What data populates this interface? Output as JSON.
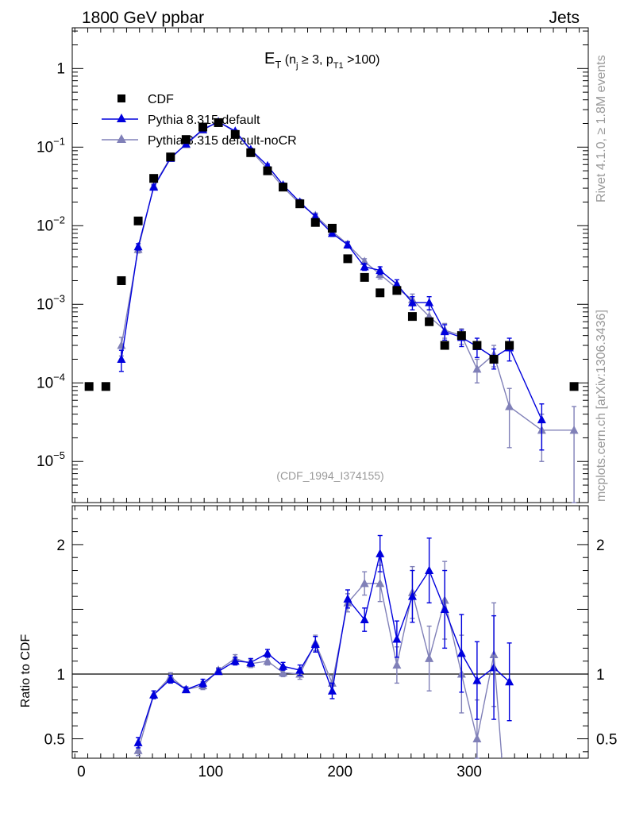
{
  "header": {
    "left": "1800 GeV ppbar",
    "right": "Jets"
  },
  "side_labels": {
    "top": "Rivet 4.1.0, ≥ 1.8M events",
    "bottom": "mcplots.cern.ch [arXiv:1306.3436]"
  },
  "plot_title": {
    "main": "E",
    "main_sub": "T",
    "paren_open": " (n",
    "n_sub": "j",
    "cond_mid": " ≥ 3, p",
    "p_sub": "T1",
    "cond_end": " >100)"
  },
  "watermark": "(CDF_1994_I374155)",
  "legend": [
    {
      "label": "CDF",
      "marker": "square",
      "color": "#000000"
    },
    {
      "label": "Pythia 8.315 default",
      "marker": "triangle",
      "color": "#0000dd"
    },
    {
      "label": "Pythia 8.315 default-noCR",
      "marker": "triangle",
      "color": "#8080b8"
    }
  ],
  "ratio_ylabel": "Ratio to CDF",
  "chart_data": {
    "type": "line",
    "xlim": [
      -7,
      392
    ],
    "main": {
      "yscale": "log",
      "ylim": [
        3e-06,
        3.3
      ],
      "ytick_values": [
        1e-05,
        0.0001,
        0.001,
        0.01,
        0.1,
        1
      ],
      "ytick_labels": [
        {
          "base": "10",
          "exp": "−5"
        },
        {
          "base": "10",
          "exp": "−4"
        },
        {
          "base": "10",
          "exp": "−3"
        },
        {
          "base": "10",
          "exp": "−2"
        },
        {
          "base": "10",
          "exp": "−1"
        },
        {
          "base": "1",
          "exp": ""
        }
      ]
    },
    "ratio": {
      "ylim": [
        0.35,
        2.3
      ],
      "ytick_values": [
        0.5,
        1,
        2
      ],
      "ytick_labels": [
        "0.5",
        "1",
        "2"
      ],
      "reference_line": 1
    },
    "x_ticks": [
      0,
      100,
      200,
      300
    ],
    "x_tick_labels": [
      "0",
      "100",
      "200",
      "300"
    ],
    "data": {
      "name": "CDF",
      "x": [
        6,
        19,
        31,
        44,
        56,
        69,
        81,
        94,
        106,
        119,
        131,
        144,
        156,
        169,
        181,
        194,
        206,
        219,
        231,
        244,
        256,
        269,
        281,
        294,
        306,
        319,
        331,
        381
      ],
      "y": [
        9e-05,
        9e-05,
        0.002,
        0.0115,
        0.04,
        0.075,
        0.125,
        0.18,
        0.205,
        0.145,
        0.085,
        0.05,
        0.031,
        0.019,
        0.011,
        0.0093,
        0.0038,
        0.0022,
        0.0014,
        0.0015,
        0.0007,
        0.0006,
        0.0003,
        0.0004,
        0.0003,
        0.0002,
        0.0003,
        9e-05
      ]
    },
    "series": [
      {
        "name": "Pythia 8.315 default",
        "color": "#0000dd",
        "x": [
          31,
          44,
          56,
          69,
          81,
          94,
          106,
          119,
          131,
          144,
          156,
          169,
          181,
          194,
          206,
          219,
          231,
          244,
          256,
          269,
          281,
          294,
          306,
          319,
          331,
          356
        ],
        "y": [
          0.0002,
          0.0054,
          0.031,
          0.072,
          0.11,
          0.168,
          0.21,
          0.16,
          0.093,
          0.058,
          0.033,
          0.02,
          0.013,
          0.008,
          0.0057,
          0.003,
          0.0027,
          0.0018,
          0.00105,
          0.00105,
          0.00045,
          0.00038,
          0.00029,
          0.00021,
          0.00028,
          3.4e-05
        ],
        "yerr": [
          6e-05,
          0.0005,
          0.002,
          0.003,
          0.004,
          0.006,
          0.007,
          0.005,
          0.004,
          0.003,
          0.002,
          0.0015,
          0.001,
          0.0007,
          0.0005,
          0.0003,
          0.0003,
          0.00025,
          0.0002,
          0.0002,
          0.0001,
          9e-05,
          8e-05,
          6e-05,
          9e-05,
          2e-05
        ],
        "ratio": [
          null,
          0.47,
          0.84,
          0.96,
          0.88,
          0.93,
          1.02,
          1.1,
          1.09,
          1.16,
          1.06,
          1.03,
          1.23,
          0.87,
          1.58,
          1.42,
          1.93,
          1.27,
          1.6,
          1.8,
          1.5,
          1.16,
          0.95,
          1.05,
          0.94,
          null
        ],
        "ratio_err": [
          null,
          0.04,
          0.03,
          0.03,
          0.02,
          0.03,
          0.02,
          0.03,
          0.03,
          0.03,
          0.03,
          0.04,
          0.06,
          0.06,
          0.07,
          0.09,
          0.14,
          0.14,
          0.2,
          0.25,
          0.3,
          0.3,
          0.3,
          0.4,
          0.3,
          null
        ]
      },
      {
        "name": "Pythia 8.315 default-noCR",
        "color": "#8080b8",
        "x": [
          31,
          44,
          56,
          69,
          81,
          94,
          106,
          119,
          131,
          144,
          156,
          169,
          181,
          194,
          206,
          219,
          231,
          244,
          256,
          269,
          281,
          294,
          306,
          319,
          331,
          356,
          381
        ],
        "y": [
          0.0003,
          0.005,
          0.032,
          0.074,
          0.108,
          0.165,
          0.21,
          0.156,
          0.091,
          0.053,
          0.031,
          0.019,
          0.0135,
          0.0085,
          0.0058,
          0.0035,
          0.0024,
          0.0016,
          0.00115,
          0.0007,
          0.00047,
          0.0004,
          0.00015,
          0.00023,
          5e-05,
          2.5e-05,
          2.5e-05
        ],
        "yerr": [
          8e-05,
          0.0005,
          0.002,
          0.003,
          0.004,
          0.006,
          0.007,
          0.005,
          0.004,
          0.003,
          0.002,
          0.0015,
          0.001,
          0.0007,
          0.0005,
          0.0003,
          0.0003,
          0.00025,
          0.0002,
          0.00015,
          0.0001,
          9e-05,
          5e-05,
          7e-05,
          3.5e-05,
          1.5e-05,
          2.5e-05
        ],
        "ratio": [
          null,
          0.41,
          0.84,
          0.98,
          0.88,
          0.91,
          1.03,
          1.12,
          1.08,
          1.1,
          1.01,
          1.0,
          1.24,
          0.93,
          1.55,
          1.7,
          1.7,
          1.07,
          1.63,
          1.12,
          1.57,
          1.0,
          0.5,
          1.15,
          null,
          null,
          null
        ],
        "ratio_err": [
          null,
          0.04,
          0.03,
          0.03,
          0.02,
          0.03,
          0.02,
          0.03,
          0.03,
          0.03,
          0.03,
          0.04,
          0.06,
          0.06,
          0.07,
          0.09,
          0.14,
          0.14,
          0.2,
          0.25,
          0.3,
          0.3,
          0.3,
          0.4,
          null,
          null,
          null
        ]
      }
    ]
  }
}
